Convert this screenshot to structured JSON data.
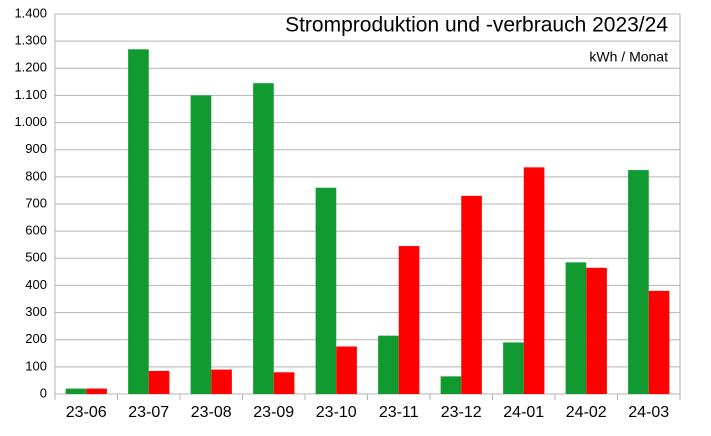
{
  "chart_data": {
    "type": "bar",
    "title": "Stromproduktion und -verbrauch 2023/24",
    "subtitle": "kWh / Monat",
    "categories": [
      "23-06",
      "23-07",
      "23-08",
      "23-09",
      "23-10",
      "23-11",
      "23-12",
      "24-01",
      "24-02",
      "24-03"
    ],
    "series": [
      {
        "color": "#109a30",
        "values": [
          20,
          1270,
          1100,
          1145,
          760,
          215,
          65,
          190,
          485,
          825
        ]
      },
      {
        "color": "#ff0000",
        "values": [
          20,
          85,
          90,
          80,
          175,
          545,
          730,
          835,
          465,
          380
        ]
      }
    ],
    "ylim": [
      0,
      1400
    ],
    "yticks": [
      0,
      100,
      200,
      300,
      400,
      500,
      600,
      700,
      800,
      900,
      {
        "value": 1000,
        "label": "1.000"
      },
      {
        "value": 1100,
        "label": "1.100"
      },
      {
        "value": 1200,
        "label": "1.200"
      },
      {
        "value": 1300,
        "label": "1.300"
      },
      {
        "value": 1400,
        "label": "1.400"
      }
    ],
    "grid": true
  }
}
